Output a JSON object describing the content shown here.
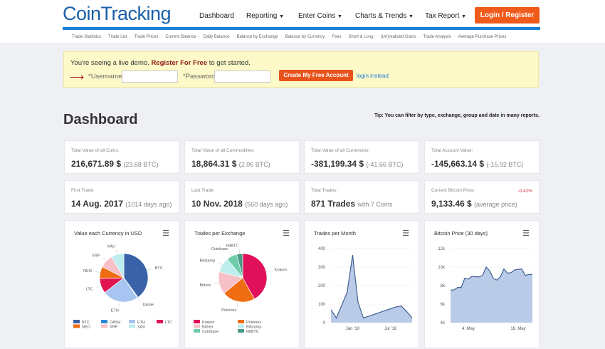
{
  "header": {
    "logo": "CoinTracking",
    "nav": [
      {
        "label": "Dashboard",
        "dropdown": false
      },
      {
        "label": "Reporting",
        "dropdown": true
      },
      {
        "label": "Enter Coins",
        "dropdown": true
      },
      {
        "label": "Charts & Trends",
        "dropdown": true
      },
      {
        "label": "Tax Report",
        "dropdown": true
      }
    ],
    "login_label": "Login / Register",
    "accent": "#f05a1a"
  },
  "subnav": [
    "Trade Statistics",
    "Trade List",
    "Trade Prices",
    "Current Balance",
    "Daily Balance",
    "Balance by Exchange",
    "Balance by Currency",
    "Fees",
    "Short & Long",
    "(Un)realized Gains",
    "Trade Analysis",
    "Average Purchase Prices"
  ],
  "demo": {
    "text_before": "You're seeing a live demo.",
    "register": "Register For Free",
    "text_after": "to get started.",
    "username_label": "*Username:",
    "username_value": "",
    "password_label": "*Password:",
    "password_value": "",
    "create_label": "Create My Free Account",
    "login_instead": "login instead"
  },
  "page": {
    "title": "Dashboard",
    "tip": "Tip: You can filter by type, exchange, group and date in many reports."
  },
  "cards": [
    {
      "title": "Total Value of all Coins:",
      "value": "216,671.89 $",
      "sub": "(23.68 BTC)"
    },
    {
      "title": "Total Value of all Commodities:",
      "value": "18,864.31 $",
      "sub": "(2.06 BTC)"
    },
    {
      "title": "Total Value of all Currencies:",
      "value": "-381,199.34 $",
      "sub": "(-41.66 BTC)"
    },
    {
      "title": "Total Account Value:",
      "value": "-145,663.14 $",
      "sub": "(-15.92 BTC)"
    },
    {
      "title": "First Trade:",
      "value": "14 Aug. 2017",
      "sub": "(1014 days ago)"
    },
    {
      "title": "Last Trade:",
      "value": "10 Nov. 2018",
      "sub": "(560 days ago)"
    },
    {
      "title": "Total Trades:",
      "value": "871 Trades",
      "sub": "with 7 Coins"
    },
    {
      "title": "Current Bitcoin Price:",
      "value": "9,133.46 $",
      "sub": "(average price)",
      "change": "-0.42%"
    }
  ],
  "chart_data": [
    {
      "type": "pie",
      "title": "Value each Currency in USD",
      "legend": "bottom",
      "labels": [
        "BTC",
        "DASH",
        "ETH",
        "LTC",
        "NEO",
        "XRP",
        "XAU"
      ],
      "values": [
        40,
        0.5,
        24,
        10,
        8,
        9,
        8.5
      ],
      "colors": [
        "#3a62a8",
        "#2e8ad8",
        "#a8c4f0",
        "#e0144e",
        "#ef6c12",
        "#f7c0c6",
        "#bdeded"
      ]
    },
    {
      "type": "pie",
      "title": "Trades per Exchange",
      "legend": "bottom",
      "labels": [
        "Kraken",
        "Poloniex",
        "Bittrex",
        "Bitstamp",
        "Coinbase",
        "HitBTC"
      ],
      "values": [
        42,
        22,
        15,
        10,
        7,
        4
      ],
      "colors": [
        "#e0105a",
        "#ef6c12",
        "#f7c0c6",
        "#bdeded",
        "#6fcca8",
        "#4a9a8a"
      ]
    },
    {
      "type": "area",
      "title": "Trades per Month",
      "x": [
        "Sep '17",
        "Oct '17",
        "Nov '17",
        "Dec '17",
        "Jan '18",
        "Jan '18",
        "Feb '18",
        "Mar '18",
        "Apr '18",
        "May '18",
        "Jun '18",
        "Jul '18",
        "Aug '18",
        "Sep '18",
        "Oct '18",
        "Nov '18"
      ],
      "values": [
        70,
        25,
        95,
        165,
        365,
        110,
        25,
        35,
        45,
        55,
        65,
        75,
        85,
        90,
        60,
        25
      ],
      "xticks": [
        "Jan '18",
        "Jul '18"
      ],
      "yticks": [
        "0",
        "100",
        "200",
        "300",
        "400"
      ],
      "ylim": [
        0,
        400
      ]
    },
    {
      "type": "area",
      "title": "Bitcoin Price (30 days)",
      "x": [
        "29. Apr",
        "30. Apr",
        "1. May",
        "2. May",
        "3. May",
        "4. May",
        "5. May",
        "6. May",
        "7. May",
        "8. May",
        "9. May",
        "10. May",
        "11. May",
        "12. May",
        "13. May",
        "14. May",
        "15. May",
        "16. May",
        "17. May",
        "18. May",
        "19. May",
        "20. May",
        "21. May",
        "22. May"
      ],
      "values": [
        7500,
        7550,
        7800,
        7800,
        8800,
        8700,
        9000,
        8950,
        8950,
        9100,
        10000,
        9600,
        8800,
        8600,
        8950,
        9800,
        9350,
        9400,
        9700,
        9750,
        9800,
        9100,
        9200,
        9200
      ],
      "xticks": [
        "4. May",
        "18. May"
      ],
      "yticks": [
        "4k",
        "6k",
        "8k",
        "10k",
        "12k"
      ],
      "ylim": [
        4000,
        12000
      ]
    }
  ]
}
